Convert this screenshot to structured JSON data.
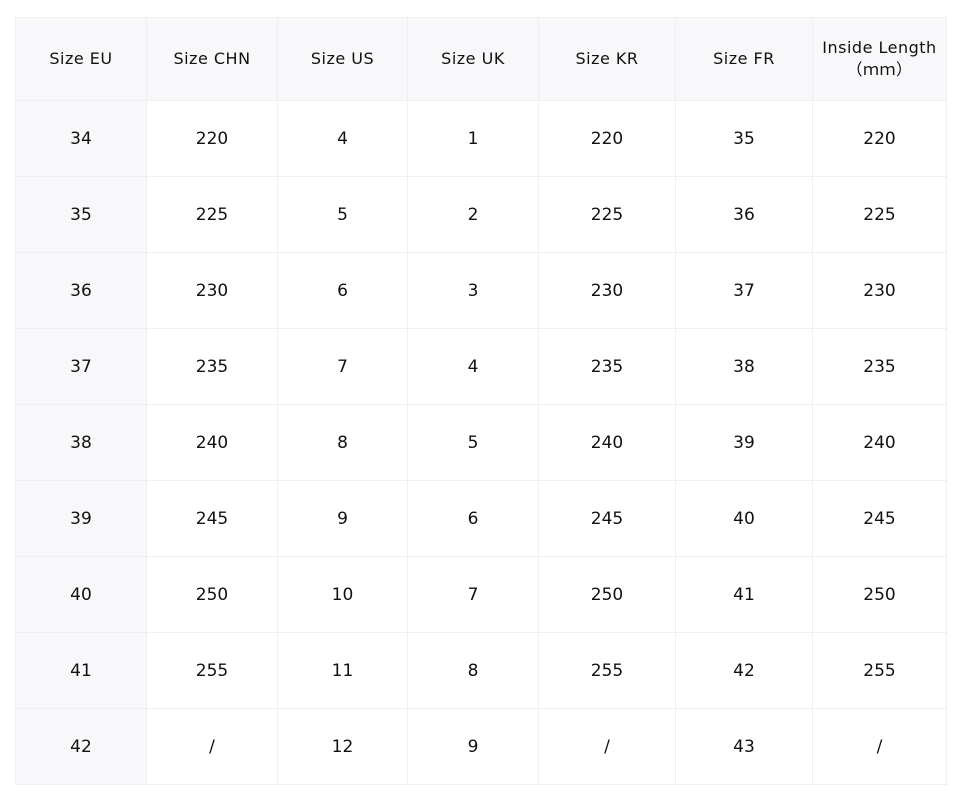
{
  "table": {
    "headers": [
      "Size EU",
      "Size CHN",
      "Size US",
      "Size UK",
      "Size KR",
      "Size FR",
      "Inside Length\n（ｍｍ）"
    ],
    "rows": [
      [
        "34",
        "220",
        "4",
        "1",
        "220",
        "35",
        "220"
      ],
      [
        "35",
        "225",
        "5",
        "2",
        "225",
        "36",
        "225"
      ],
      [
        "36",
        "230",
        "6",
        "3",
        "230",
        "37",
        "230"
      ],
      [
        "37",
        "235",
        "7",
        "4",
        "235",
        "38",
        "235"
      ],
      [
        "38",
        "240",
        "8",
        "5",
        "240",
        "39",
        "240"
      ],
      [
        "39",
        "245",
        "9",
        "6",
        "245",
        "40",
        "245"
      ],
      [
        "40",
        "250",
        "10",
        "7",
        "250",
        "41",
        "250"
      ],
      [
        "41",
        "255",
        "11",
        "8",
        "255",
        "42",
        "255"
      ],
      [
        "42",
        "/",
        "12",
        "9",
        "/",
        "43",
        "/"
      ]
    ]
  }
}
